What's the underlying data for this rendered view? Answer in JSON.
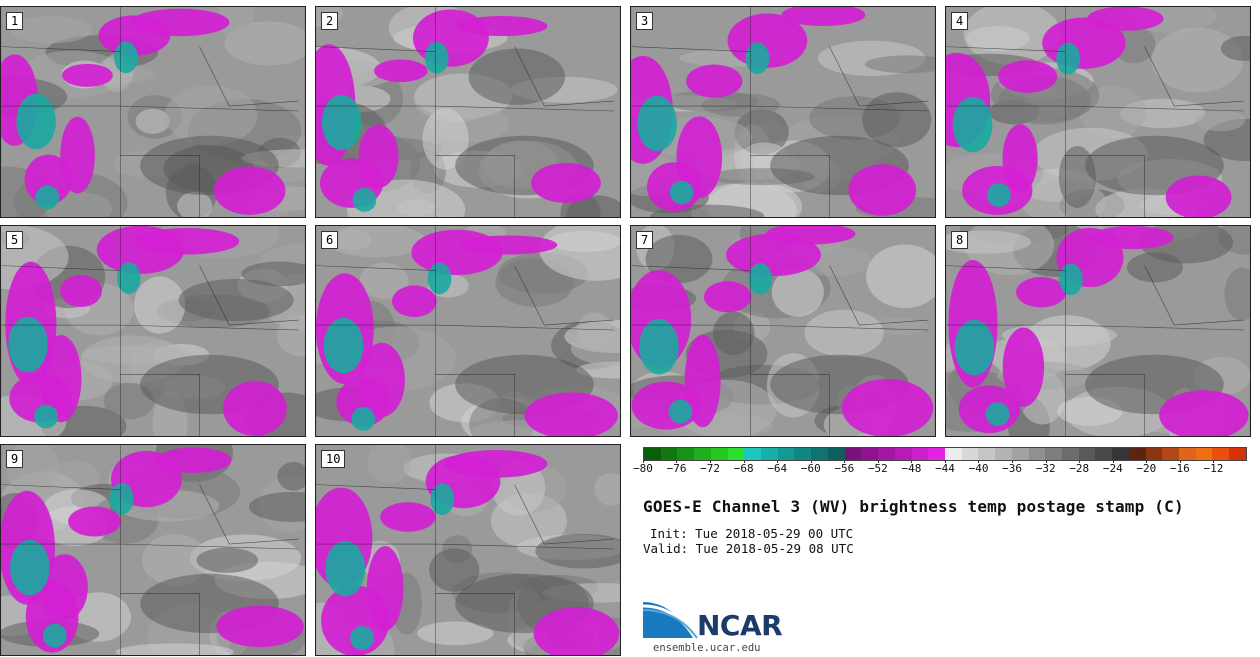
{
  "panels": [
    {
      "number": "1"
    },
    {
      "number": "2"
    },
    {
      "number": "3"
    },
    {
      "number": "4"
    },
    {
      "number": "5"
    },
    {
      "number": "6"
    },
    {
      "number": "7"
    },
    {
      "number": "8"
    },
    {
      "number": "9"
    },
    {
      "number": "10"
    }
  ],
  "colorbar": {
    "colors": [
      "#0a5d0a",
      "#10780e",
      "#16931a",
      "#1fb01d",
      "#27c822",
      "#2de02d",
      "#1cc7c0",
      "#15b0aa",
      "#139a95",
      "#118781",
      "#0f736f",
      "#0c615e",
      "#7b0f7b",
      "#8f128f",
      "#a416a4",
      "#b81ab8",
      "#cc1ecc",
      "#e422e4",
      "#ececec",
      "#d8d8d8",
      "#c6c6c6",
      "#b4b4b4",
      "#a2a2a2",
      "#909090",
      "#7e7e7e",
      "#6c6c6c",
      "#5a5a5a",
      "#484848",
      "#363636",
      "#5a2410",
      "#8a3512",
      "#b44716",
      "#e0641a",
      "#ef7010",
      "#e84f10",
      "#d6320c"
    ],
    "ticks": [
      "−80",
      "−76",
      "−72",
      "−68",
      "−64",
      "−60",
      "−56",
      "−52",
      "−48",
      "−44",
      "−40",
      "−36",
      "−32",
      "−28",
      "−24",
      "−20",
      "−16",
      "−12"
    ]
  },
  "title": "GOES-E Channel 3 (WV) brightness temp postage stamp (C)",
  "init": "Init: Tue 2018-05-29 00 UTC",
  "valid": "Valid: Tue 2018-05-29 08 UTC",
  "logo": {
    "name": "NCAR",
    "url": "ensemble.ucar.edu"
  }
}
